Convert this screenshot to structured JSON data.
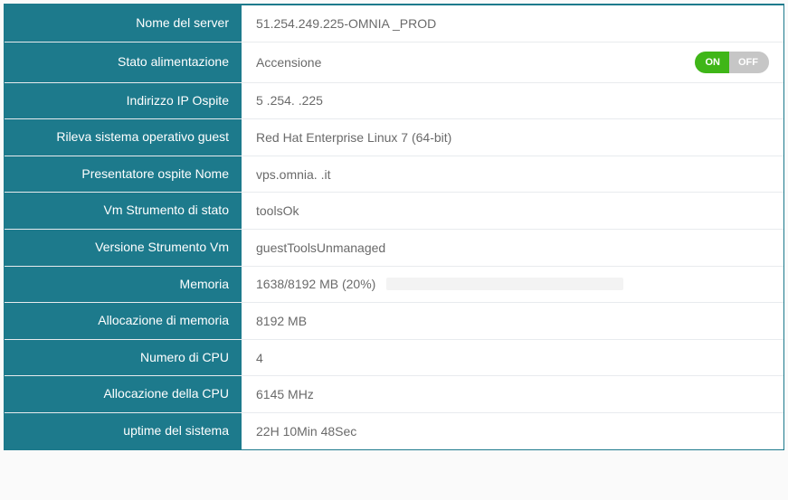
{
  "colors": {
    "panel_border": "#1d7a8c",
    "label_bg": "#1d7a8c",
    "label_text": "#ffffff",
    "value_text": "#6a6a6a",
    "row_divider": "#e8ebee",
    "toggle_on_bg": "#3fb618",
    "toggle_off_bg": "#c6c6c6",
    "progress_bg": "#f3f3f3",
    "progress_bar": "#3fb618"
  },
  "labels": {
    "server_name": "Nome del server",
    "power_state": "Stato alimentazione",
    "guest_ip": "Indirizzo IP Ospite",
    "guest_os": "Rileva sistema operativo guest",
    "host_name": "Presentatore ospite Nome",
    "tools_status": "Vm Strumento di stato",
    "tools_version": "Versione Strumento Vm",
    "memory": "Memoria",
    "memory_alloc": "Allocazione di memoria",
    "cpu_count": "Numero di CPU",
    "cpu_alloc": "Allocazione della CPU",
    "uptime": "uptime del sistema"
  },
  "values": {
    "server_name": "51.254.249.225-OMNIA           _PROD",
    "power_state": "Accensione",
    "guest_ip": "5  .254.      .225",
    "guest_os": "Red Hat Enterprise Linux 7 (64-bit)",
    "host_name": "vps.omnia.        .it",
    "tools_status": "toolsOk",
    "tools_version": "guestToolsUnmanaged",
    "memory_text": "1638/8192 MB (20%)",
    "memory_percent": 20,
    "memory_alloc": "8192 MB",
    "cpu_count": "4",
    "cpu_alloc": "6145 MHz",
    "uptime": "22H 10Min 48Sec"
  },
  "toggle": {
    "on_label": "ON",
    "off_label": "OFF",
    "state": "on"
  }
}
